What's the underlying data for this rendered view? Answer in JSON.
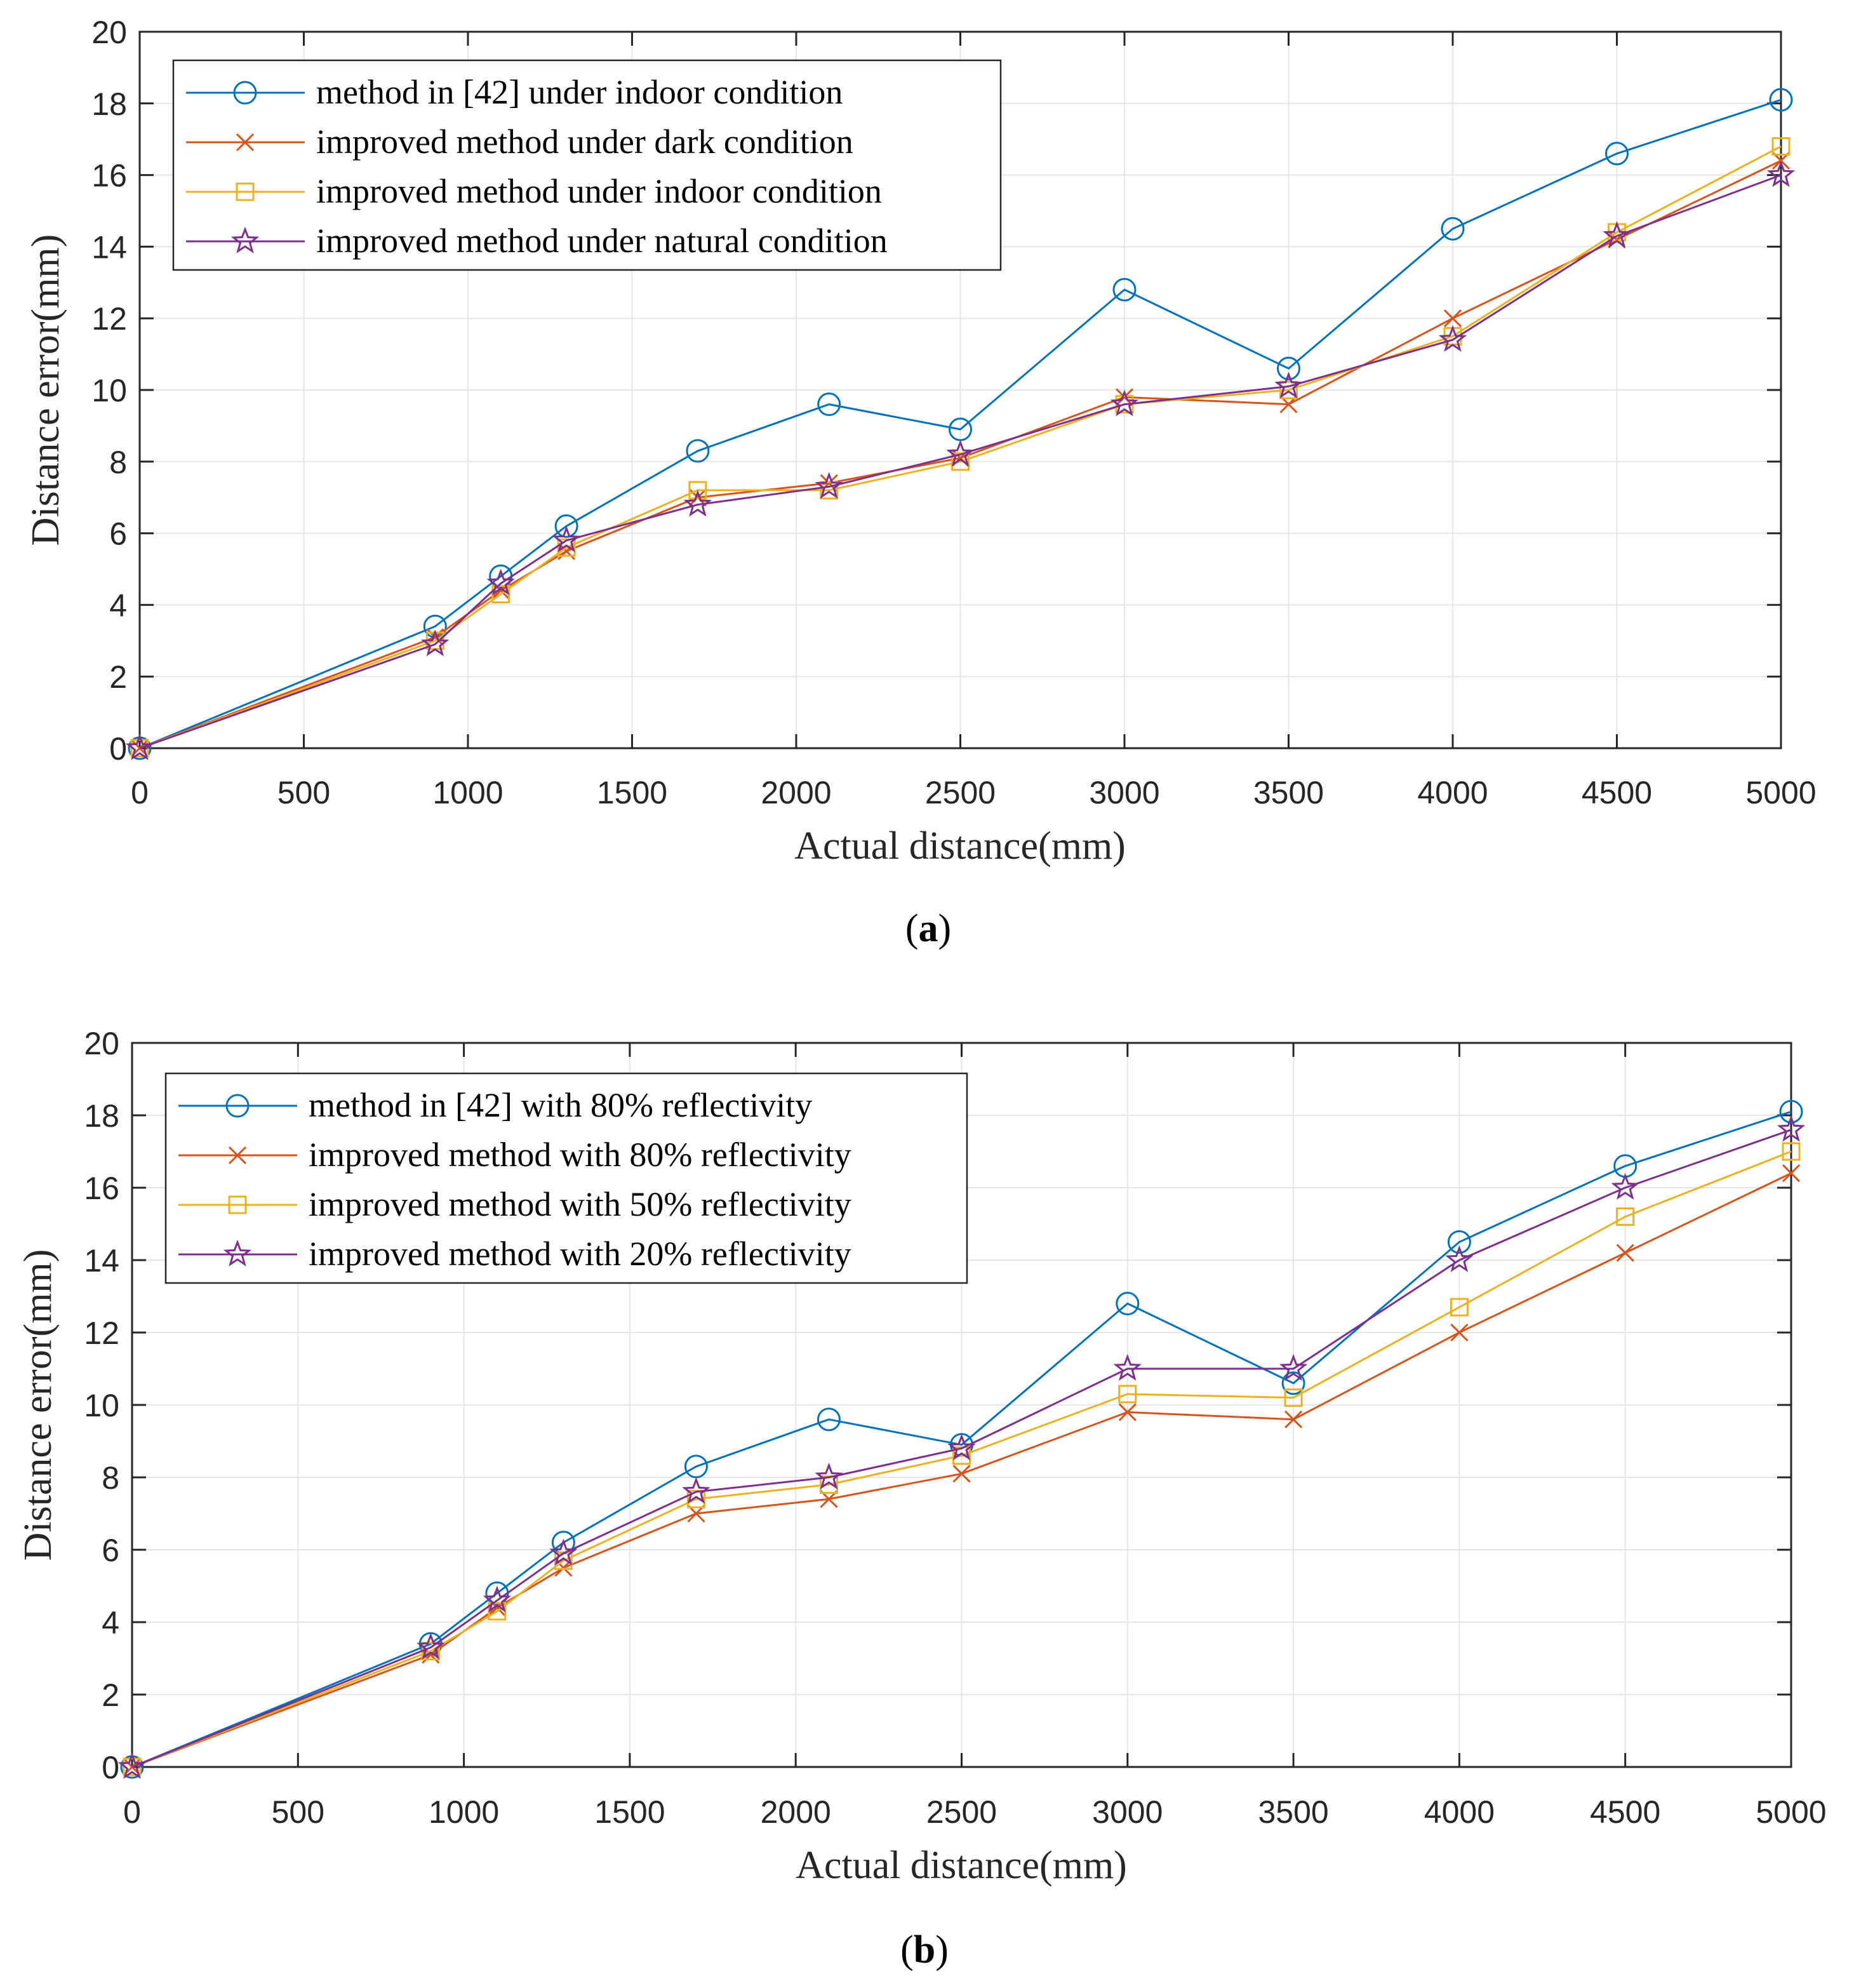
{
  "colors": {
    "blue": "#0072BD",
    "orange": "#D95319",
    "yellow": "#EDB120",
    "purple": "#7E2F8E",
    "grid": "#e6e6e6",
    "axis": "#262626"
  },
  "captions": [
    "a",
    "b"
  ],
  "chart_data": [
    {
      "type": "line",
      "id": "a",
      "xlabel": "Actual distance(mm)",
      "ylabel": "Distance error(mm)",
      "xlim": [
        0,
        5000
      ],
      "ylim": [
        0,
        20
      ],
      "xticks": [
        0,
        500,
        1000,
        1500,
        2000,
        2500,
        3000,
        3500,
        4000,
        4500,
        5000
      ],
      "yticks": [
        0,
        2,
        4,
        6,
        8,
        10,
        12,
        14,
        16,
        18,
        20
      ],
      "grid": true,
      "legend_position": "top-left",
      "x": [
        0,
        900,
        1100,
        1300,
        1700,
        2100,
        2500,
        3000,
        3500,
        4000,
        4500,
        5000
      ],
      "series": [
        {
          "name": "method in [42] under indoor condition",
          "color": "blue",
          "marker": "circle",
          "values": [
            0,
            3.4,
            4.8,
            6.2,
            8.3,
            9.6,
            8.9,
            12.8,
            10.6,
            14.5,
            16.6,
            18.1
          ]
        },
        {
          "name": "improved method under dark condition",
          "color": "orange",
          "marker": "x",
          "values": [
            0,
            3.1,
            4.4,
            5.5,
            7.0,
            7.4,
            8.1,
            9.8,
            9.6,
            12.0,
            14.2,
            16.4
          ]
        },
        {
          "name": "improved method under indoor condition",
          "color": "yellow",
          "marker": "square",
          "values": [
            0,
            3.0,
            4.3,
            5.6,
            7.2,
            7.2,
            8.0,
            9.6,
            10.0,
            11.5,
            14.4,
            16.8
          ]
        },
        {
          "name": "improved method under natural condition",
          "color": "purple",
          "marker": "star",
          "values": [
            0,
            2.9,
            4.6,
            5.8,
            6.8,
            7.3,
            8.2,
            9.6,
            10.1,
            11.4,
            14.3,
            16.0
          ]
        }
      ]
    },
    {
      "type": "line",
      "id": "b",
      "xlabel": "Actual distance(mm)",
      "ylabel": "Distance error(mm)",
      "xlim": [
        0,
        5000
      ],
      "ylim": [
        0,
        20
      ],
      "xticks": [
        0,
        500,
        1000,
        1500,
        2000,
        2500,
        3000,
        3500,
        4000,
        4500,
        5000
      ],
      "yticks": [
        0,
        2,
        4,
        6,
        8,
        10,
        12,
        14,
        16,
        18,
        20
      ],
      "grid": true,
      "legend_position": "top-left",
      "x": [
        0,
        900,
        1100,
        1300,
        1700,
        2100,
        2500,
        3000,
        3500,
        4000,
        4500,
        5000
      ],
      "series": [
        {
          "name": "method in [42] with 80% reflectivity",
          "color": "blue",
          "marker": "circle",
          "values": [
            0,
            3.4,
            4.8,
            6.2,
            8.3,
            9.6,
            8.9,
            12.8,
            10.6,
            14.5,
            16.6,
            18.1
          ]
        },
        {
          "name": "improved method with 80% reflectivity",
          "color": "orange",
          "marker": "x",
          "values": [
            0,
            3.1,
            4.4,
            5.5,
            7.0,
            7.4,
            8.1,
            9.8,
            9.6,
            12.0,
            14.2,
            16.4
          ]
        },
        {
          "name": "improved method with 50% reflectivity",
          "color": "yellow",
          "marker": "square",
          "values": [
            0,
            3.2,
            4.3,
            5.7,
            7.4,
            7.8,
            8.6,
            10.3,
            10.2,
            12.7,
            15.2,
            17.0
          ]
        },
        {
          "name": "improved method with 20% reflectivity",
          "color": "purple",
          "marker": "star",
          "values": [
            0,
            3.3,
            4.6,
            5.9,
            7.6,
            8.0,
            8.8,
            11.0,
            11.0,
            14.0,
            16.0,
            17.6
          ]
        }
      ]
    }
  ]
}
